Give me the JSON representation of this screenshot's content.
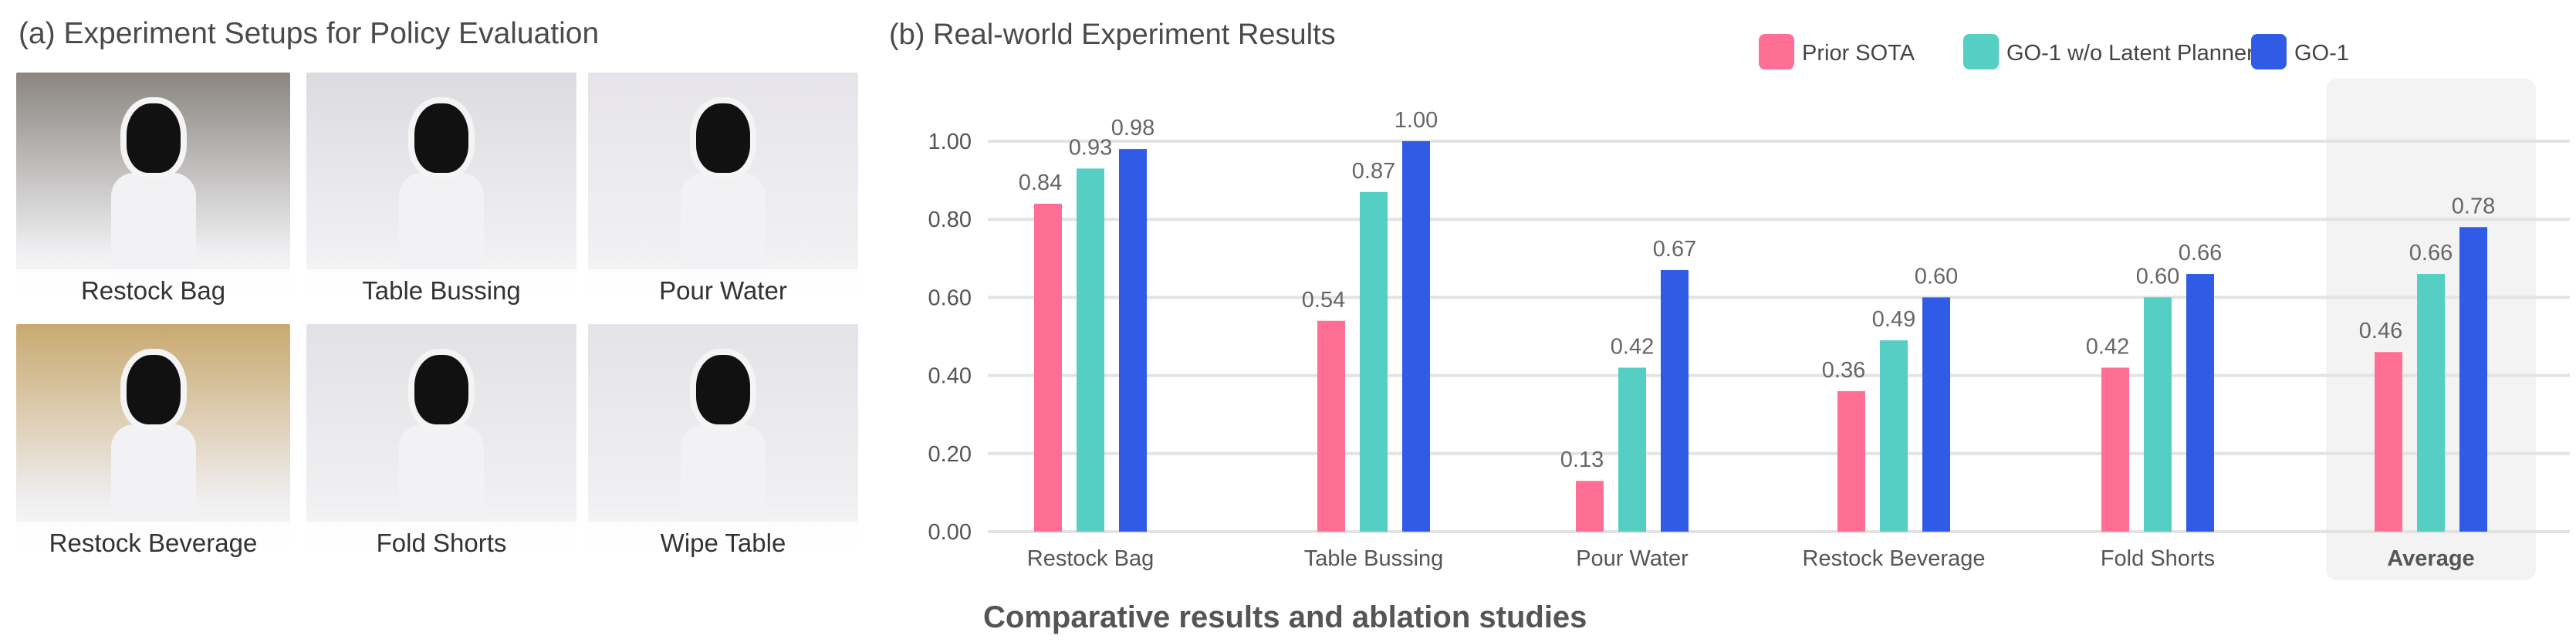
{
  "left_panel": {
    "title": "(a) Experiment Setups for Policy Evaluation",
    "photos": [
      {
        "label": "Restock Bag",
        "tint": "#8a8580"
      },
      {
        "label": "Table Bussing",
        "tint": "#dcdbe0"
      },
      {
        "label": "Pour Water",
        "tint": "#e6e4ea"
      },
      {
        "label": "Restock Beverage",
        "tint": "#c9a970"
      },
      {
        "label": "Fold Shorts",
        "tint": "#e2e2e6"
      },
      {
        "label": "Wipe Table",
        "tint": "#e4e3e8"
      }
    ]
  },
  "caption": "Comparative results and ablation studies",
  "chart_data": {
    "type": "bar",
    "title": "(b) Real-world Experiment Results",
    "xlabel": "",
    "ylabel": "",
    "ylim": [
      0,
      1
    ],
    "yticks": [
      "0.00",
      "0.20",
      "0.40",
      "0.60",
      "0.80",
      "1.00"
    ],
    "grid": true,
    "legend_position": "top-right",
    "categories": [
      "Restock Bag",
      "Table Bussing",
      "Pour Water",
      "Restock Beverage",
      "Fold Shorts",
      "Average"
    ],
    "highlighted_category": "Average",
    "series": [
      {
        "name": "Prior SOTA",
        "color": "#ff6f93",
        "values": [
          0.84,
          0.54,
          0.13,
          0.36,
          0.42,
          0.46
        ]
      },
      {
        "name": "GO-1 w/o Latent Planner",
        "color": "#55cec3",
        "values": [
          0.93,
          0.87,
          0.42,
          0.49,
          0.6,
          0.66
        ]
      },
      {
        "name": "GO-1",
        "color": "#2f5be6",
        "values": [
          0.98,
          1.0,
          0.67,
          0.6,
          0.66,
          0.78
        ]
      }
    ]
  }
}
